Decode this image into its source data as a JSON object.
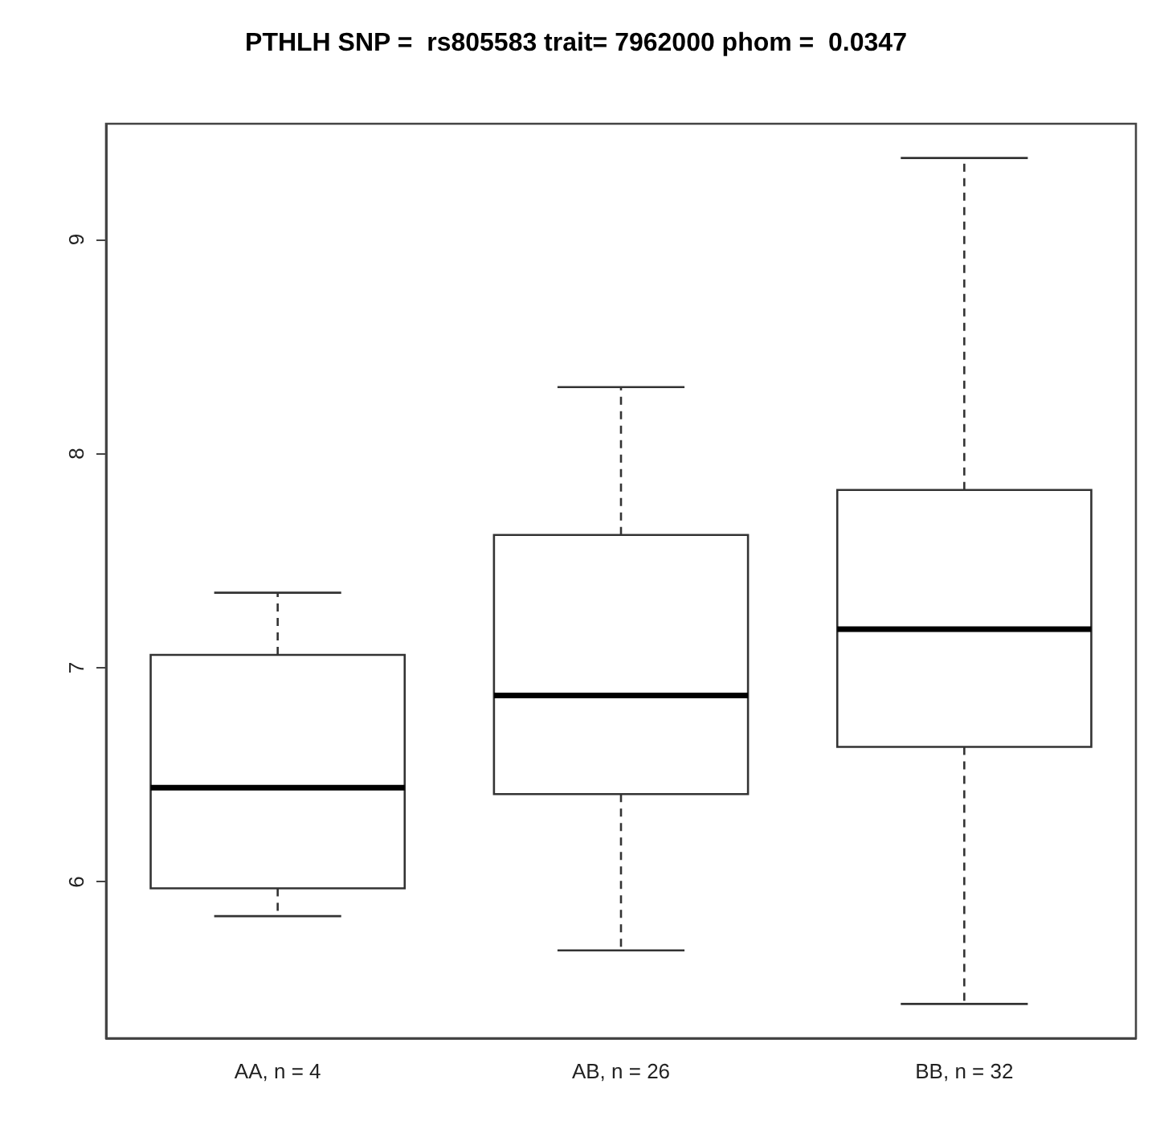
{
  "chart_data": {
    "type": "box",
    "title": "PTHLH SNP =  rs805583 trait= 7962000 phom =  0.0347",
    "categories": [
      "AA, n = 4",
      "AB, n = 26",
      "BB, n = 32"
    ],
    "boxes": [
      {
        "low": 5.84,
        "q1": 5.97,
        "median": 6.44,
        "q3": 7.06,
        "high": 7.35
      },
      {
        "low": 5.68,
        "q1": 6.41,
        "median": 6.87,
        "q3": 7.62,
        "high": 8.31
      },
      {
        "low": 5.43,
        "q1": 6.63,
        "median": 7.18,
        "q3": 7.83,
        "high": 9.38
      }
    ],
    "ylim": [
      5.27,
      9.54
    ],
    "yticks": [
      6,
      7,
      8,
      9
    ],
    "grid": false
  }
}
